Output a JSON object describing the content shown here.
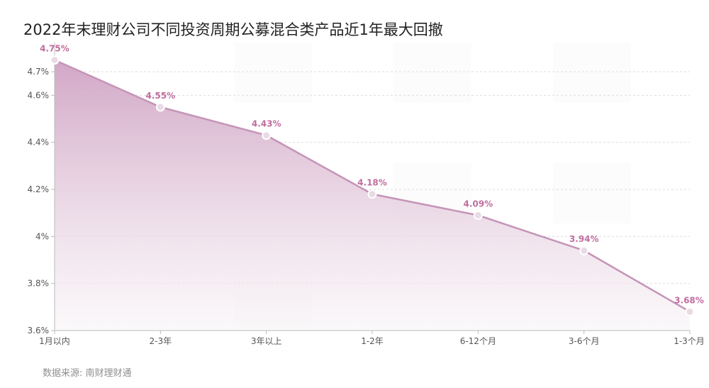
{
  "title": "2022年末理财公司不同投资周期公募混合类产品近1年最大回撤",
  "source": "数据来源: 南财理财通",
  "colors": {
    "line": "#c594b8",
    "area_top": "#cfa2c3",
    "area_bottom": "#f8f4f7",
    "point_fill": "#e9dbe5",
    "label": "#c06d9e",
    "axis_text": "#555555",
    "grid": "#dddddd",
    "title": "#222222",
    "source": "#8f8f8f"
  },
  "chart_data": {
    "type": "area",
    "title": "2022年末理财公司不同投资周期公募混合类产品近1年最大回撤",
    "categories": [
      "1月以内",
      "2-3年",
      "3年以上",
      "1-2年",
      "6-12个月",
      "3-6个月",
      "1-3个月"
    ],
    "series": [
      {
        "values": [
          4.75,
          4.55,
          4.43,
          4.18,
          4.09,
          3.94,
          3.68
        ],
        "data_labels": [
          "4.75%",
          "4.55%",
          "4.43%",
          "4.18%",
          "4.09%",
          "3.94%",
          "3.68%"
        ]
      }
    ],
    "ylim": [
      3.6,
      4.8
    ],
    "y_ticks": [
      3.6,
      3.8,
      4.0,
      4.2,
      4.4,
      4.6,
      4.7
    ],
    "y_tick_labels": [
      "3.6%",
      "3.8%",
      "4%",
      "4.2%",
      "4.4%",
      "4.6%",
      "4.7%"
    ],
    "grid": "horizontal dashed",
    "legend": "none"
  }
}
